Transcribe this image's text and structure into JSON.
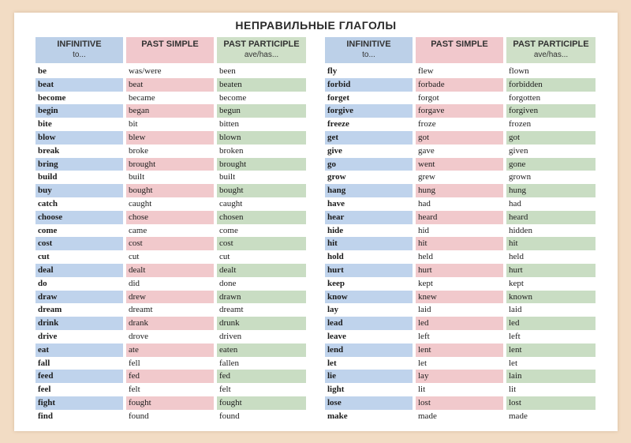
{
  "title": "НЕПРАВИЛЬНЫЕ ГЛАГОЛЫ",
  "headers": {
    "infinitive": "INFINITIVE",
    "infinitive_sub": "to...",
    "past_simple": "PAST SIMPLE",
    "past_participle": "PAST PARTICIPLE",
    "past_participle_sub": "ave/has..."
  },
  "colors": {
    "infinitive": "#bfd3ec",
    "past_simple": "#f1c9cc",
    "past_participle": "#c9ddc3"
  },
  "left_rows": [
    [
      "be",
      "was/were",
      "been"
    ],
    [
      "beat",
      "beat",
      "beaten"
    ],
    [
      "become",
      "became",
      "become"
    ],
    [
      "begin",
      "began",
      "begun"
    ],
    [
      "bite",
      "bit",
      "bitten"
    ],
    [
      "blow",
      "blew",
      "blown"
    ],
    [
      "break",
      "broke",
      "broken"
    ],
    [
      "bring",
      "brought",
      "brought"
    ],
    [
      "build",
      "built",
      "built"
    ],
    [
      "buy",
      "bought",
      "bought"
    ],
    [
      "catch",
      "caught",
      "caught"
    ],
    [
      "choose",
      "chose",
      "chosen"
    ],
    [
      "come",
      "came",
      "come"
    ],
    [
      "cost",
      "cost",
      "cost"
    ],
    [
      "cut",
      "cut",
      "cut"
    ],
    [
      "deal",
      "dealt",
      "dealt"
    ],
    [
      "do",
      "did",
      "done"
    ],
    [
      "draw",
      "drew",
      "drawn"
    ],
    [
      "dream",
      "dreamt",
      "dreamt"
    ],
    [
      "drink",
      "drank",
      "drunk"
    ],
    [
      "drive",
      "drove",
      "driven"
    ],
    [
      "eat",
      "ate",
      "eaten"
    ],
    [
      "fall",
      "fell",
      "fallen"
    ],
    [
      "feed",
      "fed",
      "fed"
    ],
    [
      "feel",
      "felt",
      "felt"
    ],
    [
      "fight",
      "fought",
      "fought"
    ],
    [
      "find",
      "found",
      "found"
    ]
  ],
  "right_rows": [
    [
      "fly",
      "flew",
      "flown"
    ],
    [
      "forbid",
      "forbade",
      "forbidden"
    ],
    [
      "forget",
      "forgot",
      "forgotten"
    ],
    [
      "forgive",
      "forgave",
      "forgiven"
    ],
    [
      "freeze",
      "froze",
      "frozen"
    ],
    [
      "get",
      "got",
      "got"
    ],
    [
      "give",
      "gave",
      "given"
    ],
    [
      "go",
      "went",
      "gone"
    ],
    [
      "grow",
      "grew",
      "grown"
    ],
    [
      "hang",
      "hung",
      "hung"
    ],
    [
      "have",
      "had",
      "had"
    ],
    [
      "hear",
      "heard",
      "heard"
    ],
    [
      "hide",
      "hid",
      "hidden"
    ],
    [
      "hit",
      "hit",
      "hit"
    ],
    [
      "hold",
      "held",
      "held"
    ],
    [
      "hurt",
      "hurt",
      "hurt"
    ],
    [
      "keep",
      "kept",
      "kept"
    ],
    [
      "know",
      "knew",
      "known"
    ],
    [
      "lay",
      "laid",
      "laid"
    ],
    [
      "lead",
      "led",
      "led"
    ],
    [
      "leave",
      "left",
      "left"
    ],
    [
      "lend",
      "lent",
      "lent"
    ],
    [
      "let",
      "let",
      "let"
    ],
    [
      "lie",
      "lay",
      "lain"
    ],
    [
      "light",
      "lit",
      "lit"
    ],
    [
      "lose",
      "lost",
      "lost"
    ],
    [
      "make",
      "made",
      "made"
    ]
  ]
}
